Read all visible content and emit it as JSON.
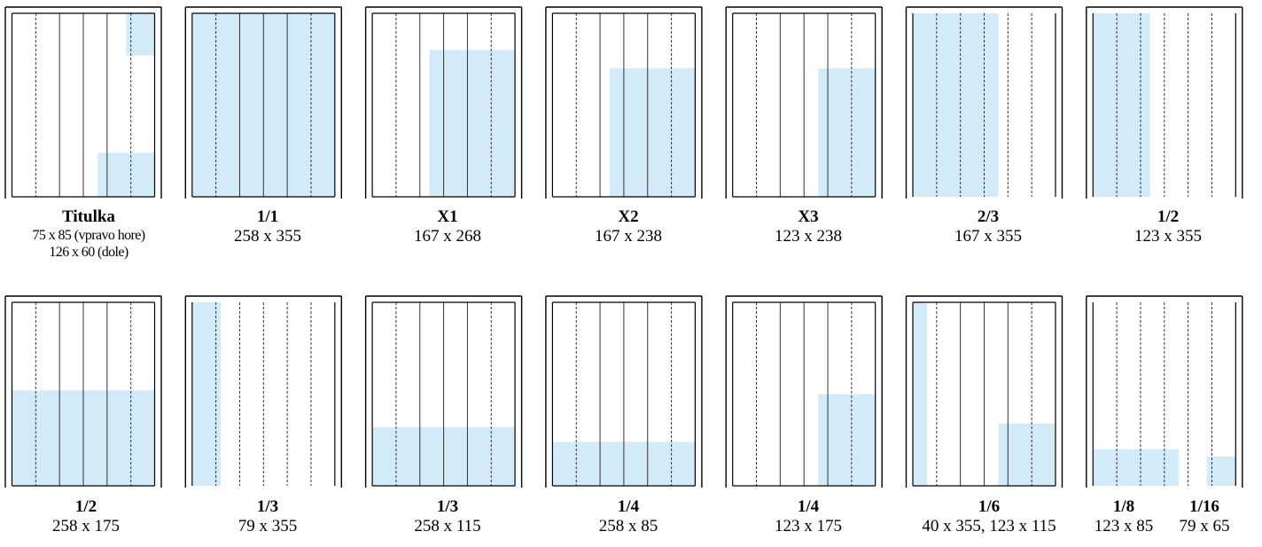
{
  "colors": {
    "fill": "#d3eaf8",
    "frame": "#000000",
    "column_line": "#333333",
    "background": "#ffffff"
  },
  "layouts": [
    {
      "title": "Titulka",
      "sizes": [
        "75 x 85 (vpravo hore)",
        "126 x 60 (dole)"
      ]
    },
    {
      "title": "1/1",
      "sizes": [
        "258 x 355"
      ]
    },
    {
      "title": "X1",
      "sizes": [
        "167 x 268"
      ]
    },
    {
      "title": "X2",
      "sizes": [
        "167 x 238"
      ]
    },
    {
      "title": "X3",
      "sizes": [
        "123 x 238"
      ]
    },
    {
      "title": "2/3",
      "sizes": [
        "167 x 355"
      ]
    },
    {
      "title": "1/2",
      "sizes": [
        "123 x 355"
      ]
    },
    {
      "title": "1/2",
      "sizes": [
        "258 x 175"
      ]
    },
    {
      "title": "1/3",
      "sizes": [
        "79 x 355"
      ]
    },
    {
      "title": "1/3",
      "sizes": [
        "258 x 115"
      ]
    },
    {
      "title": "1/4",
      "sizes": [
        "258 x 85"
      ]
    },
    {
      "title": "1/4",
      "sizes": [
        "123 x 175"
      ]
    },
    {
      "title": "1/6",
      "sizes": [
        "40 x 355,  123 x 115"
      ]
    },
    {
      "title": "1/8",
      "sizes": [
        "123 x 85"
      ]
    },
    {
      "title": "1/16",
      "sizes": [
        "79 x 65"
      ]
    }
  ]
}
